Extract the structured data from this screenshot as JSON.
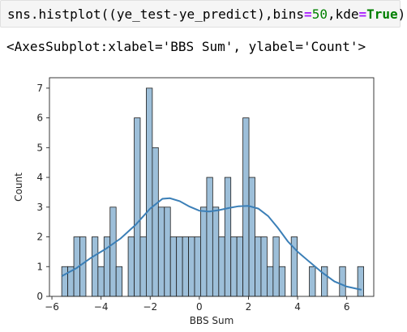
{
  "code_cell": {
    "prefix": "sns.histplot((ye_test-ye_predict),bins",
    "eq1": "=",
    "bins": "50",
    "sep": ",kde",
    "eq2": "=",
    "kde": "True",
    "suffix": ")"
  },
  "output_text": "<AxesSubplot:xlabel='BBS Sum', ylabel='Count'>",
  "colors": {
    "bar_fill": "#9dbfd9",
    "bar_edge": "#1f1f1f",
    "kde_line": "#3b7fb7"
  },
  "chart_data": {
    "type": "bar",
    "xlabel": "BBS Sum",
    "ylabel": "Count",
    "xlim": [
      -6.1,
      7.1
    ],
    "ylim": [
      0,
      7.35
    ],
    "xticks": [
      -6,
      -4,
      -2,
      0,
      2,
      4,
      6
    ],
    "xtick_labels": [
      "−6",
      "−4",
      "−2",
      "0",
      "2",
      "4",
      "6"
    ],
    "yticks": [
      0,
      1,
      2,
      3,
      4,
      5,
      6,
      7
    ],
    "ytick_labels": [
      "0",
      "1",
      "2",
      "3",
      "4",
      "5",
      "6",
      "7"
    ],
    "bin_start": -5.6,
    "bin_width": 0.2458,
    "counts": [
      1,
      1,
      2,
      2,
      0,
      2,
      1,
      2,
      3,
      1,
      0,
      2,
      6,
      2,
      7,
      5,
      3,
      3,
      2,
      2,
      2,
      2,
      2,
      3,
      4,
      3,
      2,
      4,
      2,
      2,
      6,
      4,
      2,
      2,
      1,
      2,
      1,
      0,
      2,
      0,
      0,
      1,
      0,
      1,
      0,
      0,
      1,
      0,
      0,
      1
    ],
    "kde": {
      "x": [
        -5.6,
        -5.0,
        -4.4,
        -3.8,
        -3.2,
        -2.6,
        -2.0,
        -1.5,
        -1.2,
        -0.8,
        -0.4,
        0.0,
        0.4,
        0.8,
        1.2,
        1.6,
        2.0,
        2.4,
        2.8,
        3.2,
        3.6,
        4.0,
        4.5,
        5.0,
        5.5,
        6.0,
        6.6
      ],
      "y": [
        0.68,
        0.95,
        1.3,
        1.6,
        1.95,
        2.4,
        2.95,
        3.28,
        3.3,
        3.2,
        3.02,
        2.88,
        2.85,
        2.9,
        2.97,
        3.03,
        3.04,
        2.95,
        2.7,
        2.3,
        1.85,
        1.5,
        1.15,
        0.8,
        0.5,
        0.33,
        0.22
      ]
    }
  }
}
